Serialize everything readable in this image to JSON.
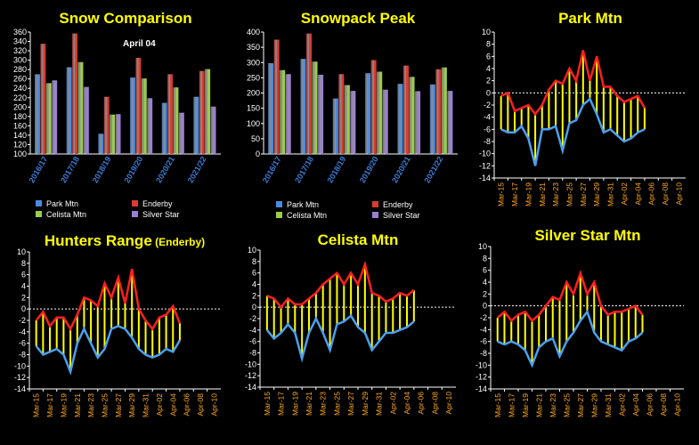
{
  "colors": {
    "park": "#4a8ce0",
    "enderby": "#d93a32",
    "celista": "#9acd4a",
    "silver": "#9b7fd4",
    "title": "#ffff00",
    "fill_yellow": "#ffff00",
    "line_red": "#ff2020",
    "line_blue": "#4aa0f0",
    "zero_line": "#ffffff"
  },
  "chart_data": [
    {
      "id": "snow-comparison",
      "type": "bar",
      "title": "Snow Comparison",
      "annotation": "April 04",
      "categories": [
        "2016/17",
        "2017/18",
        "2018/19",
        "2019/20",
        "2020/21",
        "2021/22"
      ],
      "ylim": [
        100,
        360
      ],
      "yticks": [
        100,
        120,
        140,
        160,
        180,
        200,
        220,
        240,
        260,
        280,
        300,
        320,
        340,
        360
      ],
      "series": [
        {
          "name": "Park Mtn",
          "values": [
            270,
            285,
            143,
            263,
            209,
            222
          ]
        },
        {
          "name": "Enderby",
          "values": [
            335,
            357,
            222,
            305,
            270,
            277
          ]
        },
        {
          "name": "Celista Mtn",
          "values": [
            251,
            296,
            184,
            261,
            242,
            281
          ]
        },
        {
          "name": "Silver Star",
          "values": [
            257,
            243,
            185,
            219,
            188,
            201
          ]
        }
      ]
    },
    {
      "id": "snowpack-peak",
      "type": "bar",
      "title": "Snowpack Peak",
      "categories": [
        "2016/17",
        "2017/18",
        "2018/19",
        "2019/20",
        "2020/21",
        "2021/22"
      ],
      "ylim": [
        0,
        400
      ],
      "yticks": [
        0,
        50,
        100,
        150,
        200,
        250,
        300,
        350,
        400
      ],
      "series": [
        {
          "name": "Park Mtn",
          "values": [
            298,
            312,
            182,
            265,
            230,
            228
          ]
        },
        {
          "name": "Enderby",
          "values": [
            375,
            395,
            262,
            308,
            290,
            278
          ]
        },
        {
          "name": "Celista Mtn",
          "values": [
            275,
            303,
            226,
            270,
            253,
            284
          ]
        },
        {
          "name": "Silver Star",
          "values": [
            262,
            260,
            207,
            211,
            206,
            207
          ]
        }
      ]
    },
    {
      "id": "park-mtn",
      "type": "line",
      "title": "Park Mtn",
      "subtitle": "",
      "x_labels": [
        "Mar-15",
        "Mar-17",
        "Mar-19",
        "Mar-21",
        "Mar-23",
        "Mar-25",
        "Mar-27",
        "Mar-29",
        "Mar-31",
        "Apr-02",
        "Apr-04",
        "Apr-06",
        "Apr-08",
        "Apr-10"
      ],
      "ylim": [
        -14,
        10
      ],
      "yticks": [
        -14,
        -12,
        -10,
        -8,
        -6,
        -4,
        -2,
        0,
        2,
        4,
        6,
        8,
        10
      ],
      "series": [
        {
          "values": [
            -0.5,
            0,
            -3,
            -2.5,
            -2,
            -3.5,
            -2,
            0.5,
            2,
            1.5,
            4,
            2,
            7,
            2,
            6,
            1,
            1,
            -0.5,
            -1.5,
            -1,
            -0.5,
            -2.5
          ]
        },
        {
          "values": [
            -6,
            -6.5,
            -6.5,
            -5.5,
            -7.5,
            -12,
            -6,
            -6,
            -5.5,
            -9.5,
            -5,
            -4.5,
            -2,
            -1,
            -3.5,
            -6.5,
            -6,
            -7,
            -8,
            -7.5,
            -6.5,
            -6
          ]
        }
      ]
    },
    {
      "id": "hunters-range",
      "type": "line",
      "title": "Hunters Range",
      "subtitle": "(Enderby)",
      "x_labels": [
        "Mar-15",
        "Mar-17",
        "Mar-19",
        "Mar-21",
        "Mar-23",
        "Mar-25",
        "Mar-27",
        "Mar-29",
        "Mar-31",
        "Apr-02",
        "Apr-04",
        "Apr-06",
        "Apr-08",
        "Apr-10"
      ],
      "ylim": [
        -14,
        10
      ],
      "yticks": [
        -14,
        -12,
        -10,
        -8,
        -6,
        -4,
        -2,
        0,
        2,
        4,
        6,
        8,
        10
      ],
      "series": [
        {
          "values": [
            -2,
            -0.5,
            -3,
            -1.5,
            -1.5,
            -3.5,
            -1,
            2,
            1.5,
            0.5,
            4.5,
            2,
            5.5,
            1,
            7,
            0,
            -2,
            -3.5,
            -1.5,
            -1,
            0.5,
            -2.5
          ]
        },
        {
          "values": [
            -6.5,
            -8,
            -7.5,
            -7,
            -8,
            -11,
            -6,
            -3.5,
            -6,
            -8.5,
            -7,
            -3.5,
            -3,
            -3.5,
            -5,
            -7,
            -8,
            -8.5,
            -8,
            -7,
            -7.5,
            -5.5
          ]
        }
      ]
    },
    {
      "id": "celista-mtn",
      "type": "line",
      "title": "Celista Mtn",
      "subtitle": "",
      "x_labels": [
        "Mar-15",
        "Mar-17",
        "Mar-19",
        "Mar-21",
        "Mar-23",
        "Mar-25",
        "Mar-27",
        "Mar-29",
        "Mar-31",
        "Apr-02",
        "Apr-04",
        "Apr-06",
        "Apr-08",
        "Apr-10"
      ],
      "ylim": [
        -14,
        10
      ],
      "yticks": [
        -14,
        -12,
        -10,
        -8,
        -6,
        -4,
        -2,
        0,
        2,
        4,
        6,
        8,
        10
      ],
      "series": [
        {
          "values": [
            2,
            1.5,
            0,
            1.5,
            0.5,
            0.5,
            1.5,
            2.5,
            4,
            5,
            6,
            4,
            6,
            4,
            7.5,
            2.5,
            2,
            1,
            1.5,
            2.5,
            2,
            3
          ]
        },
        {
          "values": [
            -4,
            -5.5,
            -4.5,
            -3,
            -4.5,
            -9,
            -4.5,
            -2,
            -4.5,
            -7.5,
            -3,
            -2.5,
            -1.5,
            -3.5,
            -4.5,
            -7.5,
            -6,
            -4.5,
            -4.5,
            -4,
            -3.5,
            -2.5
          ]
        }
      ]
    },
    {
      "id": "silver-star-mtn",
      "type": "line",
      "title": "Silver Star Mtn",
      "subtitle": "",
      "x_labels": [
        "Mar-15",
        "Mar-17",
        "Mar-19",
        "Mar-21",
        "Mar-23",
        "Mar-25",
        "Mar-27",
        "Mar-29",
        "Mar-31",
        "Apr-02",
        "Apr-04",
        "Apr-06",
        "Apr-08",
        "Apr-10"
      ],
      "ylim": [
        -14,
        10
      ],
      "yticks": [
        -14,
        -12,
        -10,
        -8,
        -6,
        -4,
        -2,
        0,
        2,
        4,
        6,
        8,
        10
      ],
      "series": [
        {
          "values": [
            -2,
            -1,
            -2.5,
            -1.5,
            -1,
            -2.5,
            -1.5,
            0,
            1.5,
            1,
            4,
            2,
            5.5,
            2,
            4,
            0,
            -1.5,
            -1,
            -1,
            -0.5,
            0,
            -1.5
          ]
        },
        {
          "values": [
            -6,
            -6.5,
            -6,
            -6.5,
            -7.5,
            -10,
            -7,
            -6,
            -5.5,
            -8.5,
            -6,
            -4.5,
            -2.5,
            -1,
            -4.5,
            -6,
            -6.5,
            -7,
            -7.5,
            -6,
            -5.5,
            -4.5
          ]
        }
      ]
    }
  ]
}
